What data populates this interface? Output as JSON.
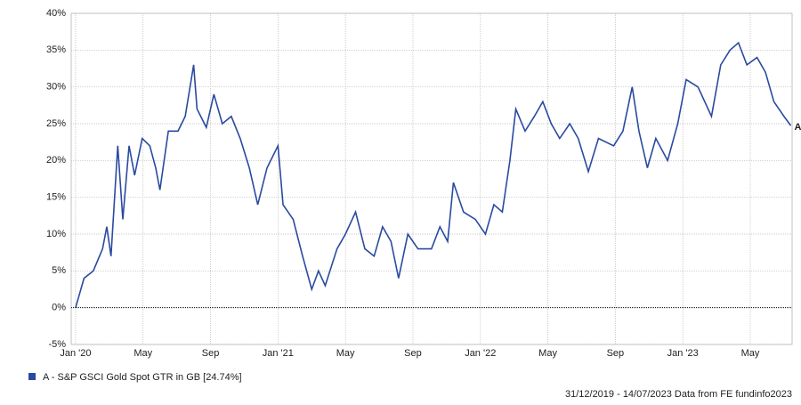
{
  "chart_data": {
    "type": "line",
    "x": [
      0,
      0.5,
      1.05,
      1.6,
      1.85,
      2.1,
      2.5,
      2.8,
      3.17,
      3.5,
      3.95,
      4.4,
      4.75,
      5.0,
      5.5,
      6.07,
      6.5,
      7.0,
      7.2,
      7.75,
      8.2,
      8.7,
      9.23,
      9.76,
      10.3,
      10.8,
      11.35,
      12.0,
      12.3,
      12.9,
      13.46,
      14.0,
      14.4,
      14.8,
      15.5,
      16.0,
      16.6,
      17.15,
      17.7,
      18.2,
      18.7,
      19.15,
      19.7,
      20.3,
      21.1,
      21.6,
      22.06,
      22.4,
      23.0,
      23.7,
      24.3,
      24.8,
      25.3,
      25.75,
      26.1,
      26.65,
      27.2,
      27.7,
      28.2,
      28.7,
      29.3,
      29.8,
      30.4,
      31.0,
      31.9,
      32.45,
      33.0,
      33.4,
      33.9,
      34.4,
      35.1,
      35.7,
      36.2,
      36.9,
      37.7,
      38.25,
      38.8,
      39.3,
      39.8,
      40.4,
      40.9,
      41.4,
      42.0,
      42.4
    ],
    "series": [
      {
        "name": "A - S&P GSCI Gold Spot GTR in GB [24.74%]",
        "color": "#2a4aa0",
        "values": [
          0,
          4,
          5,
          8,
          11,
          7,
          22,
          12,
          22,
          18,
          23,
          22,
          19,
          16,
          24,
          24,
          26,
          33,
          27,
          24.5,
          29,
          25,
          26,
          23,
          19,
          14,
          19,
          22,
          14,
          12,
          7,
          2.5,
          5,
          3,
          8,
          10,
          13,
          8,
          7,
          11,
          9,
          4,
          10,
          8,
          8,
          11,
          9,
          17,
          13,
          12,
          10,
          14,
          13,
          20,
          27,
          24,
          26,
          28,
          25,
          23,
          25,
          23,
          18.5,
          23,
          22,
          24,
          30,
          24,
          19,
          23,
          20,
          25,
          31,
          30,
          26,
          33,
          35,
          36,
          33,
          34,
          32,
          28,
          26,
          24.74
        ]
      }
    ],
    "end_label": "A",
    "xlim": [
      -0.26,
      42.48
    ],
    "xticks": [
      {
        "value": 0,
        "label": "Jan '20"
      },
      {
        "value": 4,
        "label": "May"
      },
      {
        "value": 8,
        "label": "Sep"
      },
      {
        "value": 12,
        "label": "Jan '21"
      },
      {
        "value": 16,
        "label": "May"
      },
      {
        "value": 20,
        "label": "Sep"
      },
      {
        "value": 24,
        "label": "Jan '22"
      },
      {
        "value": 28,
        "label": "May"
      },
      {
        "value": 32,
        "label": "Sep"
      },
      {
        "value": 36,
        "label": "Jan '23"
      },
      {
        "value": 40,
        "label": "May"
      }
    ],
    "ylim": [
      -5,
      40
    ],
    "yticks": [
      {
        "value": -5,
        "label": "-5%"
      },
      {
        "value": 0,
        "label": "0%"
      },
      {
        "value": 5,
        "label": "5%"
      },
      {
        "value": 10,
        "label": "10%"
      },
      {
        "value": 15,
        "label": "15%"
      },
      {
        "value": 20,
        "label": "20%"
      },
      {
        "value": 25,
        "label": "25%"
      },
      {
        "value": 30,
        "label": "30%"
      },
      {
        "value": 35,
        "label": "35%"
      },
      {
        "value": 40,
        "label": "40%"
      }
    ],
    "grid": true,
    "zero_line": true,
    "footer": "31/12/2019 - 14/07/2023 Data from FE fundinfo2023"
  }
}
